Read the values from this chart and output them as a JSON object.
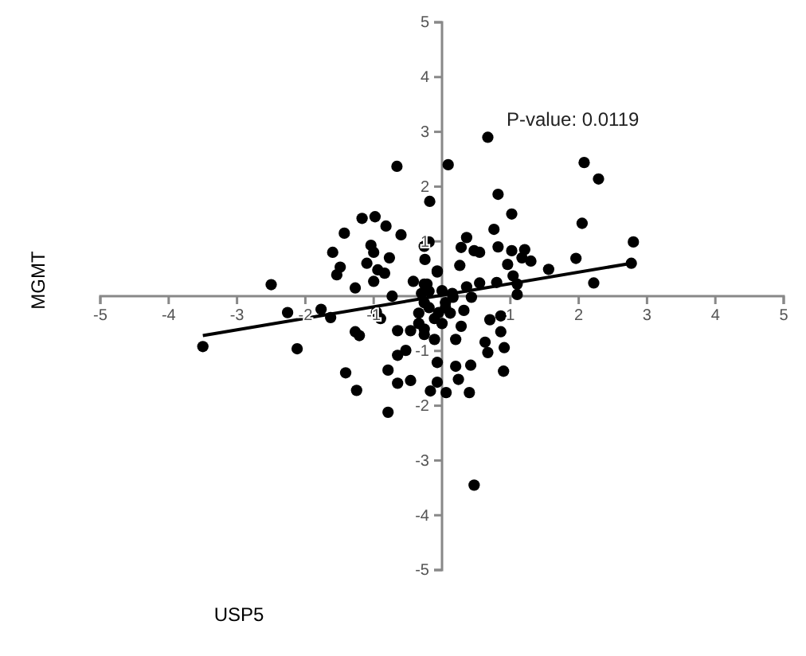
{
  "chart_data": {
    "type": "scatter",
    "xlabel": "USP5",
    "ylabel": "MGMT",
    "annotations": [
      "P-value: 0.0119"
    ],
    "xlim": [
      -5,
      5
    ],
    "ylim": [
      -5,
      5
    ],
    "xticks": [
      -5,
      -4,
      -3,
      -2,
      -1,
      {
        "value": 0,
        "label": null
      },
      1,
      2,
      3,
      4,
      5
    ],
    "yticks": [
      -5,
      -4,
      -3,
      -2,
      -1,
      {
        "value": 0,
        "label": null
      },
      1,
      2,
      3,
      4,
      5
    ],
    "grid": false,
    "series": [
      {
        "marker": "circle",
        "color": "#000000",
        "x": [
          -0.66,
          -0.18,
          -1.17,
          -0.98,
          -0.82,
          -1.43,
          -0.6,
          -1.04,
          -1.0,
          -1.6,
          -0.77,
          -0.26,
          -0.19,
          -0.25,
          -1.49,
          -1.54,
          -1.1,
          -0.94,
          -0.84,
          -1.0,
          -1.27,
          -2.5,
          -0.73,
          -0.42,
          -0.22,
          -0.07,
          -2.26,
          -1.77,
          -1.63,
          -0.96,
          -0.9,
          -0.65,
          -0.46,
          -0.34,
          -0.19,
          -1.27,
          -1.21,
          -3.5,
          -2.12,
          -1.41,
          -1.25,
          -0.79,
          -0.65,
          -0.46,
          -0.79,
          -0.65,
          -0.53,
          -0.11,
          -0.07,
          -0.07,
          -0.17,
          -0.26,
          0.67,
          0.09,
          2.08,
          2.29,
          0.82,
          1.02,
          2.05,
          0.76,
          2.8,
          0.36,
          0.28,
          0.47,
          0.55,
          0.82,
          1.02,
          1.21,
          1.17,
          1.3,
          0.96,
          1.96,
          2.77,
          1.56,
          2.22,
          0.26,
          1.04,
          1.1,
          1.1,
          0.8,
          0.55,
          0.36,
          -0.07,
          -0.26,
          0.16,
          0.32,
          0.43,
          0.05,
          0.47,
          0.9,
          0.91,
          0.67,
          0.63,
          0.86,
          0.86,
          0.7,
          0.42,
          0.4,
          0.24,
          0.2,
          0.06,
          0.2,
          0.28,
          -0.26,
          -0.11,
          0.05,
          -0.26,
          -0.34,
          0.12,
          -0.19,
          0.0,
          -0.05,
          0.15,
          -0.3,
          0.0
        ],
        "values": [
          2.37,
          1.73,
          1.42,
          1.45,
          1.28,
          1.15,
          1.12,
          0.93,
          0.8,
          0.8,
          0.7,
          0.91,
          0.99,
          0.67,
          0.53,
          0.39,
          0.6,
          0.48,
          0.42,
          0.27,
          0.15,
          0.21,
          0,
          0.27,
          0.22,
          0.46,
          -0.3,
          -0.24,
          -0.39,
          -0.29,
          -0.41,
          -0.63,
          -0.63,
          -0.31,
          -0.21,
          -0.65,
          -0.72,
          -0.92,
          -0.96,
          -1.4,
          -1.72,
          -1.35,
          -1.59,
          -1.54,
          -2.12,
          -1.08,
          -0.99,
          -0.79,
          -1.21,
          -1.57,
          -1.73,
          -0.6,
          2.9,
          2.4,
          2.44,
          2.14,
          1.86,
          1.5,
          1.33,
          1.22,
          0.99,
          1.07,
          0.89,
          0.83,
          0.8,
          0.9,
          0.83,
          0.85,
          0.7,
          0.64,
          0.58,
          0.69,
          0.6,
          0.49,
          0.24,
          0.56,
          0.37,
          0.22,
          0.03,
          0.25,
          0.24,
          0.17,
          0.44,
          0.22,
          -0.02,
          -0.26,
          -0.02,
          -0.21,
          -3.45,
          -1.37,
          -0.94,
          -1.03,
          -0.84,
          -0.65,
          -0.36,
          -0.43,
          -1.26,
          -1.76,
          -1.52,
          -1.28,
          -1.76,
          -0.79,
          -0.55,
          -0.7,
          -0.41,
          -0.12,
          -0.12,
          -0.5,
          -0.31,
          0.09,
          0.1,
          -0.3,
          0.05,
          0.05,
          -0.5
        ]
      },
      {
        "type": "line",
        "marker": "none",
        "color": "#000000",
        "line_style": "solid",
        "x": [
          -3.5,
          2.77
        ],
        "values": [
          -0.72,
          0.6
        ]
      }
    ]
  }
}
